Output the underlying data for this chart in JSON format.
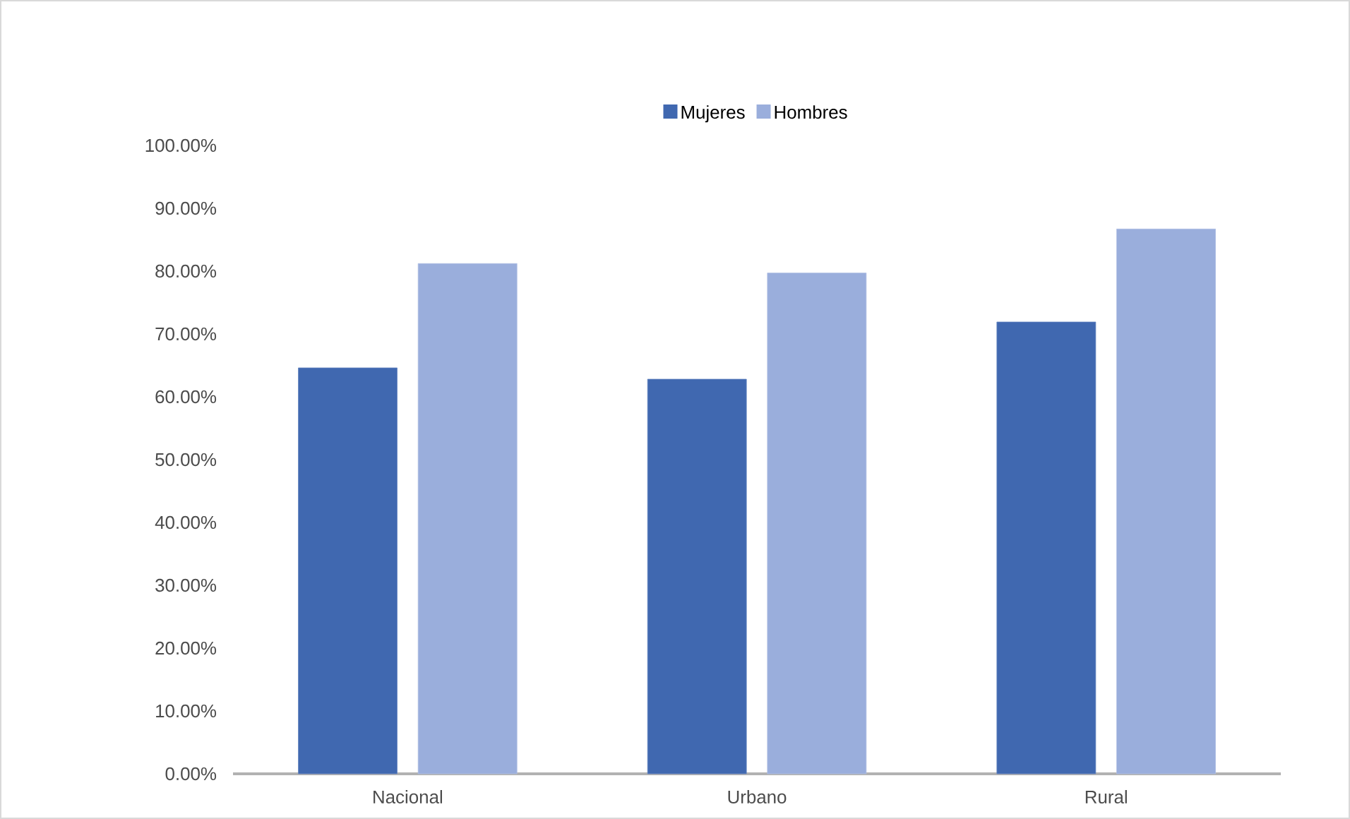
{
  "chart_data": {
    "type": "bar",
    "categories": [
      "Nacional",
      "Urbano",
      "Rural"
    ],
    "series": [
      {
        "name": "Mujeres",
        "color": "#4068b0",
        "values": [
          64.6,
          62.8,
          71.9
        ]
      },
      {
        "name": "Hombres",
        "color": "#9aaedc",
        "values": [
          81.2,
          79.7,
          86.7
        ]
      }
    ],
    "ylim": [
      0,
      100
    ],
    "yticks": [
      {
        "value": 0,
        "label": "0.00%"
      },
      {
        "value": 10,
        "label": "10.00%"
      },
      {
        "value": 20,
        "label": "20.00%"
      },
      {
        "value": 30,
        "label": "30.00%"
      },
      {
        "value": 40,
        "label": "40.00%"
      },
      {
        "value": 50,
        "label": "50.00%"
      },
      {
        "value": 60,
        "label": "60.00%"
      },
      {
        "value": 70,
        "label": "70.00%"
      },
      {
        "value": 80,
        "label": "80.00%"
      },
      {
        "value": 90,
        "label": "90.00%"
      },
      {
        "value": 100,
        "label": "100.00%"
      }
    ],
    "legend": "top",
    "grid": false
  }
}
